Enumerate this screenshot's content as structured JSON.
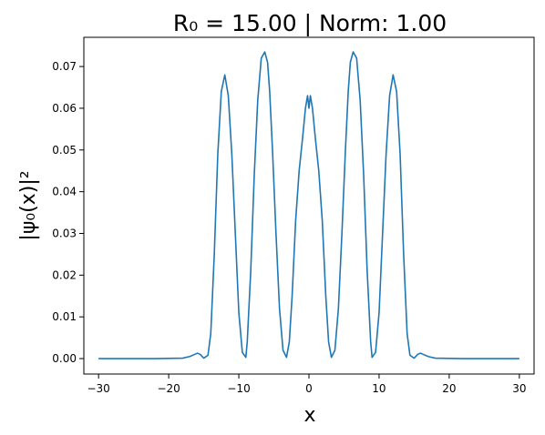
{
  "chart_data": {
    "type": "line",
    "title": "R₀ = 15.00 | Norm: 1.00",
    "xlabel": "x",
    "ylabel": "|ψ₀(x)|²",
    "xlim": [
      -32.1,
      32.1
    ],
    "ylim": [
      -0.0037,
      0.077
    ],
    "xticks": [
      -30,
      -20,
      -10,
      0,
      10,
      20,
      30
    ],
    "xtick_labels": [
      "−30",
      "−20",
      "−10",
      "0",
      "10",
      "20",
      "30"
    ],
    "yticks": [
      0.0,
      0.01,
      0.02,
      0.03,
      0.04,
      0.05,
      0.06,
      0.07
    ],
    "ytick_labels": [
      "0.00",
      "0.01",
      "0.02",
      "0.03",
      "0.04",
      "0.05",
      "0.06",
      "0.07"
    ],
    "grid": false,
    "series": [
      {
        "color": "#1f77b4",
        "x": [
          -30,
          -22,
          -18,
          -17,
          -16.3,
          -15.9,
          -15.5,
          -15,
          -14.4,
          -14,
          -13.5,
          -13,
          -12.5,
          -12,
          -11.5,
          -11,
          -10.5,
          -10,
          -9.5,
          -9,
          -8.8,
          -8.3,
          -7.8,
          -7.3,
          -6.8,
          -6.3,
          -5.9,
          -5.6,
          -5.2,
          -4.7,
          -4.2,
          -3.7,
          -3.2,
          -2.8,
          -2.4,
          -1.9,
          -1.4,
          -0.9,
          -0.5,
          -0.2,
          0,
          0.2,
          0.5,
          0.9,
          1.4,
          1.9,
          2.4,
          2.8,
          3.2,
          3.7,
          4.2,
          4.7,
          5.2,
          5.6,
          5.9,
          6.3,
          6.8,
          7.3,
          7.8,
          8.3,
          8.8,
          9,
          9.5,
          10,
          10.5,
          11,
          11.5,
          12,
          12.5,
          13,
          13.5,
          14,
          14.4,
          15,
          15.5,
          15.9,
          16.3,
          17,
          18,
          22,
          30
        ],
        "y": [
          0,
          0,
          0.0001,
          0.0005,
          0.001,
          0.0013,
          0.001,
          0.0001,
          0.0008,
          0.006,
          0.025,
          0.049,
          0.064,
          0.068,
          0.063,
          0.049,
          0.03,
          0.011,
          0.0015,
          0.0003,
          0.004,
          0.021,
          0.044,
          0.062,
          0.072,
          0.0735,
          0.071,
          0.064,
          0.05,
          0.03,
          0.012,
          0.002,
          0.0003,
          0.004,
          0.015,
          0.033,
          0.045,
          0.053,
          0.06,
          0.063,
          0.06,
          0.063,
          0.06,
          0.053,
          0.045,
          0.033,
          0.015,
          0.004,
          0.0003,
          0.002,
          0.012,
          0.03,
          0.05,
          0.064,
          0.071,
          0.0735,
          0.072,
          0.062,
          0.044,
          0.021,
          0.004,
          0.0003,
          0.0015,
          0.011,
          0.03,
          0.049,
          0.063,
          0.068,
          0.064,
          0.049,
          0.025,
          0.006,
          0.0008,
          0.0001,
          0.001,
          0.0013,
          0.001,
          0.0005,
          0.0001,
          0,
          0
        ]
      }
    ]
  }
}
